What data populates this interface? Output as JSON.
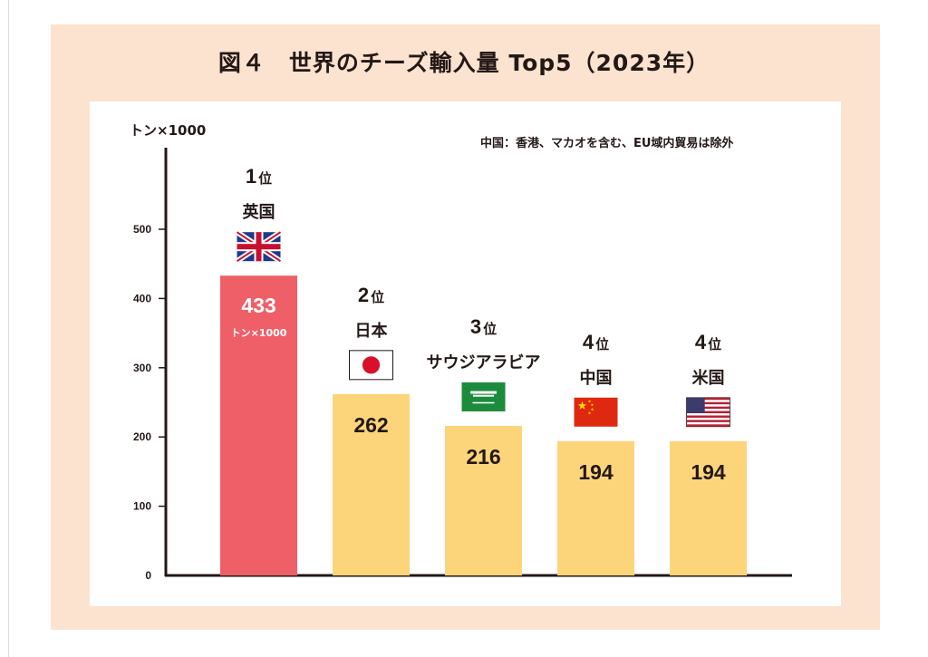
{
  "title": "図４　世界のチーズ輸入量 Top5（2023年）",
  "unit_label": "トン×1000",
  "note": "中国：香港、マカオを含む、EU域内貿易は除外",
  "colors": {
    "first": "#ef5f67",
    "others": "#fcd57b",
    "frame": "#fce3cf",
    "axis": "#231815"
  },
  "chart_data": {
    "type": "bar",
    "title": "図４　世界のチーズ輸入量 Top5（2023年）",
    "ylabel": "トン×1000",
    "xlabel": "",
    "ylim": [
      0,
      500
    ],
    "yticks": [
      0,
      100,
      200,
      300,
      400,
      500
    ],
    "grid": false,
    "categories": [
      "英国",
      "日本",
      "サウジアラビア",
      "中国",
      "米国"
    ],
    "ranks": [
      "1",
      "2",
      "3",
      "4",
      "4"
    ],
    "rank_suffix": "位",
    "flags": [
      "uk-flag-icon",
      "japan-flag-icon",
      "saudi-arabia-flag-icon",
      "china-flag-icon",
      "usa-flag-icon"
    ],
    "values": [
      433,
      262,
      216,
      194,
      194
    ],
    "value_unit_on_first": "トン×1000"
  }
}
